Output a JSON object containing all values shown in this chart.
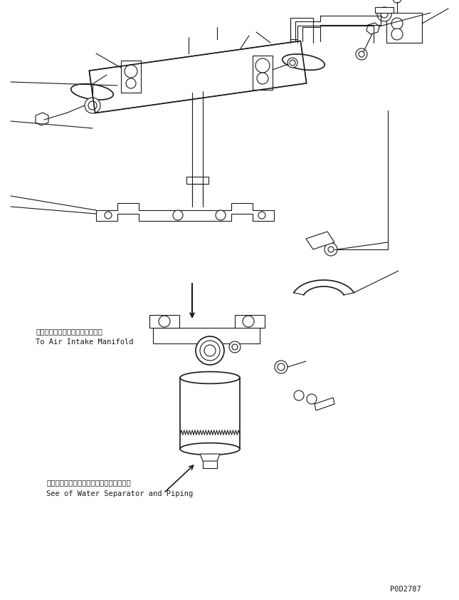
{
  "bg_color": "#ffffff",
  "line_color": "#1a1a1a",
  "text_color": "#1a1a1a",
  "annotation1_jp": "エアーインテークマニホールドへ",
  "annotation1_en": "To Air Intake Manifold",
  "annotation2_jp": "ウォータセパレータおよびパイピング参照",
  "annotation2_en": "See of Water Separator and Piping",
  "part_number": "P0D2787",
  "figsize": [
    6.45,
    8.42
  ],
  "dpi": 100
}
